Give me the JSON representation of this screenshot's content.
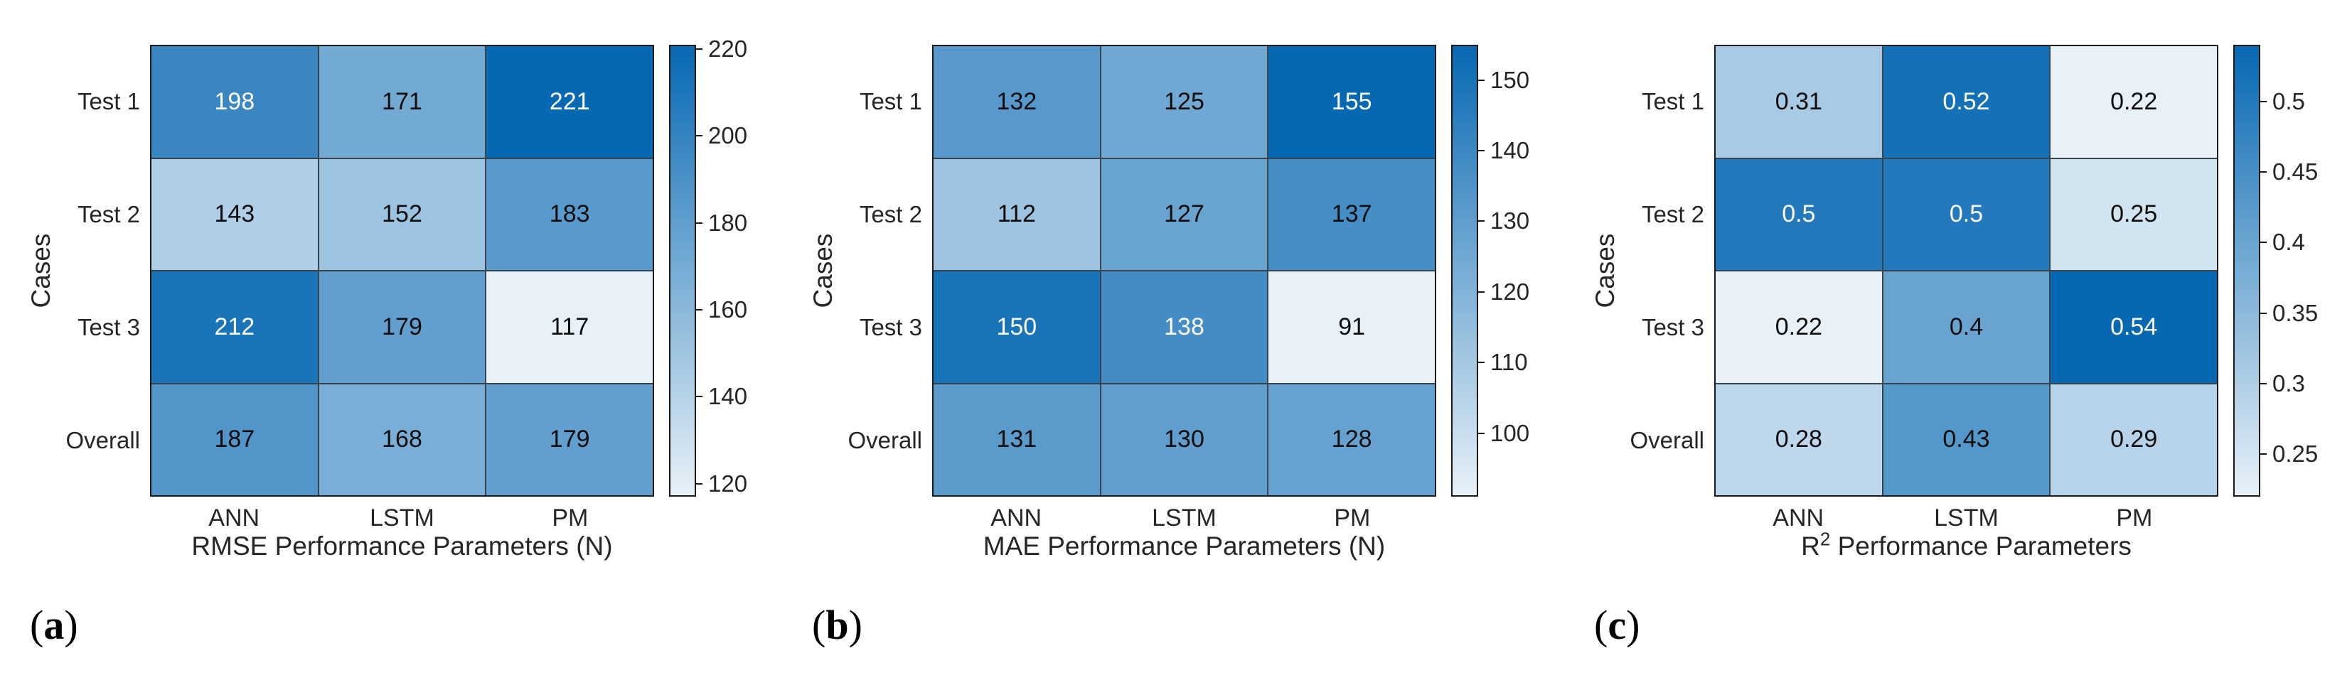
{
  "colors": {
    "background": "#ffffff",
    "colormap_light": "#E8F1F8",
    "colormap_dark": "#0768B2",
    "grid_line": "#3A444E",
    "outer_border": "#1A1A1A",
    "axis_label": "#262626",
    "tick_label": "#262626",
    "cell_text_dark": "#0D0D0D",
    "cell_text_light": "#FFFFFF"
  },
  "text_color_threshold": 0.725,
  "chart_data": [
    {
      "type": "heatmap",
      "caption": "(a)",
      "caption_open": "(",
      "caption_letter": "a",
      "caption_close": ")",
      "xlabel": {
        "text": "RMSE Performance Parameters (N)",
        "pre": "RMSE Performance Parameters (N)",
        "sup": "",
        "post": ""
      },
      "ylabel": "Cases",
      "columns": [
        "ANN",
        "LSTM",
        "PM"
      ],
      "rows": [
        "Test 1",
        "Test 2",
        "Test 3",
        "Overall"
      ],
      "values": [
        [
          198,
          171,
          221
        ],
        [
          143,
          152,
          183
        ],
        [
          212,
          179,
          117
        ],
        [
          187,
          168,
          179
        ]
      ],
      "clim": [
        117,
        221
      ],
      "colorbar_ticks": [
        220,
        200,
        180,
        160,
        140,
        120
      ],
      "legend_position": "right",
      "grid": true
    },
    {
      "type": "heatmap",
      "caption": "(b)",
      "caption_open": "(",
      "caption_letter": "b",
      "caption_close": ")",
      "xlabel": {
        "text": "MAE Performance Parameters (N)",
        "pre": "MAE Performance Parameters (N)",
        "sup": "",
        "post": ""
      },
      "ylabel": "Cases",
      "columns": [
        "ANN",
        "LSTM",
        "PM"
      ],
      "rows": [
        "Test 1",
        "Test 2",
        "Test 3",
        "Overall"
      ],
      "values": [
        [
          132,
          125,
          155
        ],
        [
          112,
          127,
          137
        ],
        [
          150,
          138,
          91
        ],
        [
          131,
          130,
          128
        ]
      ],
      "clim": [
        91,
        155
      ],
      "colorbar_ticks": [
        150,
        140,
        130,
        120,
        110,
        100
      ],
      "legend_position": "right",
      "grid": true
    },
    {
      "type": "heatmap",
      "caption": "(c)",
      "caption_open": "(",
      "caption_letter": "c",
      "caption_close": ")",
      "xlabel": {
        "text": "R2 Performance Parameters",
        "pre": "R",
        "sup": "2",
        "post": " Performance Parameters"
      },
      "ylabel": "Cases",
      "columns": [
        "ANN",
        "LSTM",
        "PM"
      ],
      "rows": [
        "Test 1",
        "Test 2",
        "Test 3",
        "Overall"
      ],
      "values": [
        [
          0.31,
          0.52,
          0.22
        ],
        [
          0.5,
          0.5,
          0.25
        ],
        [
          0.22,
          0.4,
          0.54
        ],
        [
          0.28,
          0.43,
          0.29
        ]
      ],
      "clim": [
        0.22,
        0.54
      ],
      "colorbar_ticks": [
        0.5,
        0.45,
        0.4,
        0.35,
        0.3,
        0.25
      ],
      "legend_position": "right",
      "grid": true
    }
  ]
}
